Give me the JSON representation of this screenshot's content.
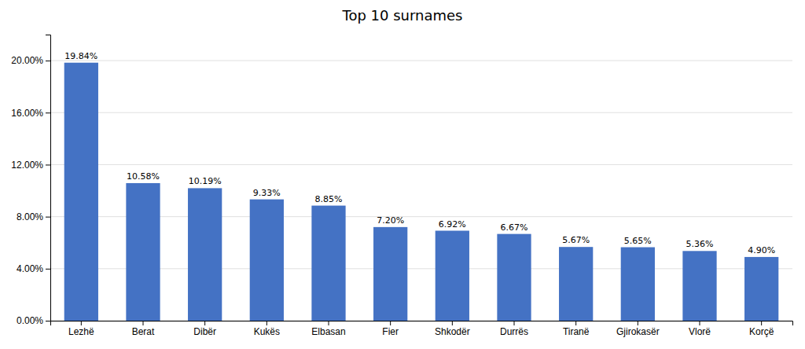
{
  "chart_data": {
    "type": "bar",
    "title": "Top 10 surnames",
    "categories": [
      "Lezhë",
      "Berat",
      "Dibër",
      "Kukës",
      "Elbasan",
      "Fier",
      "Shkodër",
      "Durrës",
      "Tiranë",
      "Gjirokasër",
      "Vlorë",
      "Korçë"
    ],
    "values": [
      19.84,
      10.58,
      10.19,
      9.33,
      8.85,
      7.2,
      6.92,
      6.67,
      5.67,
      5.65,
      5.36,
      4.9
    ],
    "value_labels": [
      "19.84%",
      "10.58%",
      "10.19%",
      "9.33%",
      "8.85%",
      "7.20%",
      "6.92%",
      "6.67%",
      "5.67%",
      "5.65%",
      "5.36%",
      "4.90%"
    ],
    "data_labels": true,
    "color": "#4472C4",
    "ylim": [
      0,
      22
    ],
    "yticks": [
      {
        "value": 0,
        "label": "0.00%"
      },
      {
        "value": 4,
        "label": "4.00%"
      },
      {
        "value": 8,
        "label": "8.00%"
      },
      {
        "value": 12,
        "label": "12.00%"
      },
      {
        "value": 16,
        "label": "16.00%"
      },
      {
        "value": 20,
        "label": "20.00%"
      }
    ],
    "grid": true
  }
}
